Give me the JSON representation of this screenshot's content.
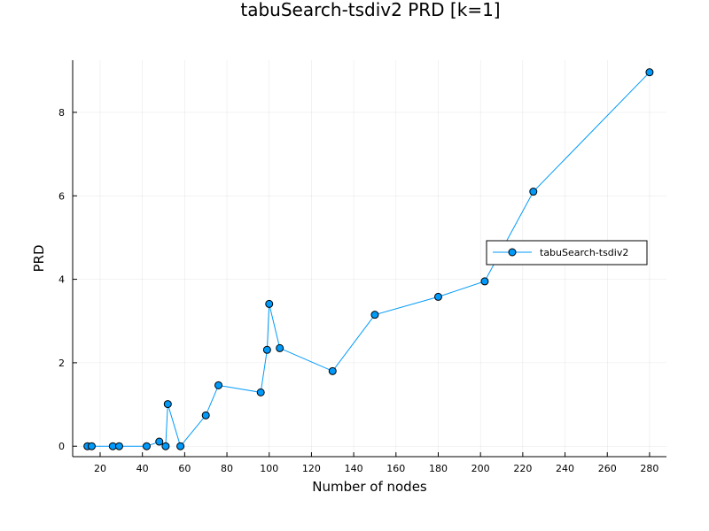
{
  "chart_data": {
    "type": "line",
    "title": "tabuSearch-tsdiv2 PRD [k=1]",
    "xlabel": "Number of nodes",
    "ylabel": "PRD",
    "xlim": [
      7,
      288
    ],
    "ylim": [
      -0.25,
      9.25
    ],
    "xticks": [
      20,
      40,
      60,
      80,
      100,
      120,
      140,
      160,
      180,
      200,
      220,
      240,
      260,
      280
    ],
    "yticks": [
      0,
      2,
      4,
      6,
      8
    ],
    "grid": true,
    "legend_position": "right",
    "series": [
      {
        "name": "tabuSearch-tsdiv2",
        "color": "#009AFA",
        "marker": "circle",
        "x": [
          14,
          16,
          26,
          29,
          42,
          48,
          51,
          52,
          58,
          70,
          76,
          96,
          99,
          100,
          105,
          130,
          150,
          180,
          202,
          225,
          280
        ],
        "y": [
          0.0,
          0.0,
          0.0,
          0.0,
          0.0,
          0.11,
          0.0,
          1.01,
          0.0,
          0.74,
          1.46,
          1.29,
          2.31,
          3.41,
          2.35,
          1.8,
          3.15,
          3.58,
          3.95,
          6.1,
          8.96
        ]
      }
    ]
  }
}
